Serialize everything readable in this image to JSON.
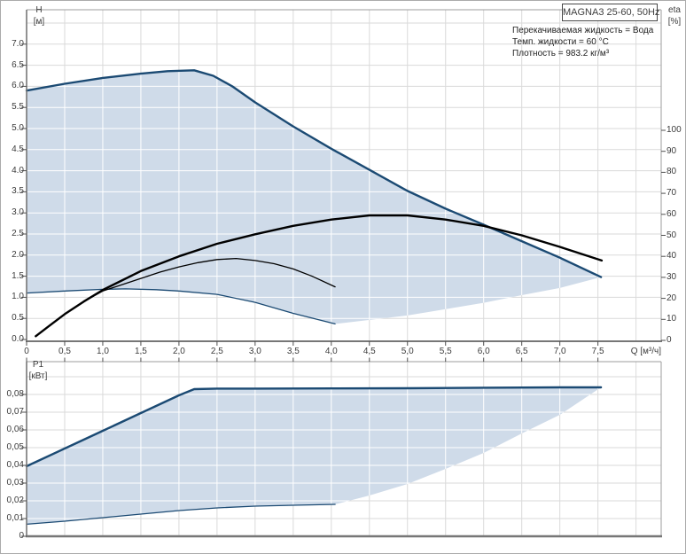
{
  "header": {
    "title": "MAGNA3 25-60, 50Hz"
  },
  "conditions": {
    "line1": "Перекачиваемая жидкость = Вода",
    "line2": "Темп. жидкости = 60 °C",
    "line3": "Плотность = 983.2 кг/м³"
  },
  "axes": {
    "h": [
      "H",
      "[м]"
    ],
    "eta": [
      "eta",
      "[%]"
    ],
    "p1": [
      "P1",
      "[кВт]"
    ],
    "q": "Q [м³/ч]"
  },
  "colors": {
    "curve_blue": "#1b4a73",
    "fill_blue": "#cfdbe9",
    "curve_black": "#000000",
    "grid": "#dadada",
    "frame_light": "#9c9c9c",
    "frame_dark": "#777777",
    "tick": "#4f4f4f",
    "text": "#3c3c3c"
  },
  "chart_data": [
    {
      "id": "head-efficiency",
      "type": "area",
      "x_axis": {
        "label": "Q [м³/ч]",
        "min": 0,
        "max": 8.33,
        "tick_labels": [
          "0",
          "0,5",
          "1,0",
          "1,5",
          "2,0",
          "2,5",
          "3,0",
          "3,5",
          "4,0",
          "4,5",
          "5,0",
          "5,5",
          "6,0",
          "6,5",
          "7,0",
          "7,5"
        ]
      },
      "y_axis_left": {
        "label": "H [м]",
        "min": 0,
        "max": 7.8,
        "tick_labels": [
          "7.0",
          "6.5",
          "6.0",
          "5.5",
          "5.0",
          "4.5",
          "4.0",
          "3.5",
          "3.0",
          "2.5",
          "2.0",
          "1.5",
          "1.0",
          "0.5",
          "0.0"
        ]
      },
      "y_axis_right": {
        "label": "eta [%]",
        "min": 0,
        "max": 100,
        "tick_labels": [
          "100",
          "90",
          "80",
          "70",
          "60",
          "50",
          "40",
          "30",
          "20",
          "10",
          "0"
        ]
      },
      "series": [
        {
          "name": "head-max-speed",
          "axis": "H",
          "style": "thick-blue",
          "points": [
            [
              0,
              5.9
            ],
            [
              0.5,
              6.06
            ],
            [
              1.0,
              6.2
            ],
            [
              1.5,
              6.3
            ],
            [
              1.85,
              6.36
            ],
            [
              2.2,
              6.38
            ],
            [
              2.45,
              6.25
            ],
            [
              2.7,
              6.0
            ],
            [
              3.0,
              5.62
            ],
            [
              3.5,
              5.05
            ],
            [
              4.0,
              4.52
            ],
            [
              4.5,
              4.02
            ],
            [
              5.0,
              3.52
            ],
            [
              5.5,
              3.1
            ],
            [
              6.0,
              2.72
            ],
            [
              6.5,
              2.33
            ],
            [
              7.0,
              1.94
            ],
            [
              7.54,
              1.48
            ]
          ]
        },
        {
          "name": "head-min-speed",
          "axis": "H",
          "style": "thin-blue",
          "points": [
            [
              0,
              1.1
            ],
            [
              0.5,
              1.15
            ],
            [
              1.0,
              1.19
            ],
            [
              1.3,
              1.2
            ],
            [
              1.7,
              1.18
            ],
            [
              2.0,
              1.15
            ],
            [
              2.5,
              1.07
            ],
            [
              3.0,
              0.88
            ],
            [
              3.5,
              0.62
            ],
            [
              4.05,
              0.37
            ]
          ]
        },
        {
          "name": "eta-max-speed",
          "axis": "eta",
          "style": "thick-black",
          "points": [
            [
              0.12,
              2
            ],
            [
              0.3,
              7
            ],
            [
              0.5,
              12.5
            ],
            [
              0.75,
              18.5
            ],
            [
              1.0,
              24
            ],
            [
              1.5,
              33
            ],
            [
              2.0,
              40
            ],
            [
              2.5,
              46
            ],
            [
              3.0,
              50.5
            ],
            [
              3.5,
              54.5
            ],
            [
              4.0,
              57.5
            ],
            [
              4.5,
              59.5
            ],
            [
              5.0,
              59.5
            ],
            [
              5.5,
              57.5
            ],
            [
              6.0,
              54.5
            ],
            [
              6.5,
              50
            ],
            [
              7.0,
              44.5
            ],
            [
              7.55,
              38
            ]
          ]
        },
        {
          "name": "eta-min-speed",
          "axis": "eta",
          "style": "thin-black",
          "points": [
            [
              0.12,
              2
            ],
            [
              0.3,
              7
            ],
            [
              0.5,
              12.5
            ],
            [
              0.75,
              18.5
            ],
            [
              1.0,
              23.5
            ],
            [
              1.25,
              26.5
            ],
            [
              1.5,
              29.5
            ],
            [
              1.75,
              32.5
            ],
            [
              2.0,
              35
            ],
            [
              2.25,
              37
            ],
            [
              2.5,
              38.5
            ],
            [
              2.75,
              39
            ],
            [
              3.0,
              38
            ],
            [
              3.25,
              36.5
            ],
            [
              3.5,
              34
            ],
            [
              3.75,
              30.5
            ],
            [
              4.05,
              25.5
            ]
          ]
        }
      ],
      "envelope_lower": [
        [
          0,
          1.1
        ],
        [
          0.5,
          1.15
        ],
        [
          1.0,
          1.19
        ],
        [
          1.3,
          1.2
        ],
        [
          1.7,
          1.18
        ],
        [
          2.0,
          1.15
        ],
        [
          2.5,
          1.07
        ],
        [
          3.0,
          0.88
        ],
        [
          3.5,
          0.62
        ],
        [
          4.05,
          0.37
        ],
        [
          5.0,
          0.57
        ],
        [
          6.0,
          0.87
        ],
        [
          6.5,
          1.05
        ],
        [
          7.0,
          1.22
        ],
        [
          7.54,
          1.48
        ]
      ]
    },
    {
      "id": "power",
      "type": "area",
      "y_axis_left": {
        "label": "P1 [кВт]",
        "min": 0,
        "max": 0.0985,
        "tick_labels": [
          "0,08",
          "0,07",
          "0,06",
          "0,05",
          "0,04",
          "0,03",
          "0,02",
          "0,01",
          "0"
        ]
      },
      "series": [
        {
          "name": "power-max-speed",
          "axis": "P",
          "style": "thick-blue",
          "points": [
            [
              0,
              0.0395
            ],
            [
              0.5,
              0.0495
            ],
            [
              1.0,
              0.0595
            ],
            [
              1.5,
              0.0695
            ],
            [
              2.0,
              0.0795
            ],
            [
              2.2,
              0.083
            ],
            [
              2.5,
              0.0833
            ],
            [
              3.0,
              0.0833
            ],
            [
              4.0,
              0.0834
            ],
            [
              5.0,
              0.0835
            ],
            [
              6.0,
              0.0838
            ],
            [
              7.0,
              0.084
            ],
            [
              7.54,
              0.084
            ]
          ]
        },
        {
          "name": "power-min-speed",
          "axis": "P",
          "style": "thin-blue",
          "points": [
            [
              0,
              0.0068
            ],
            [
              0.5,
              0.0085
            ],
            [
              1.0,
              0.0105
            ],
            [
              1.5,
              0.0125
            ],
            [
              2.0,
              0.0145
            ],
            [
              2.5,
              0.016
            ],
            [
              3.0,
              0.017
            ],
            [
              3.5,
              0.0175
            ],
            [
              4.05,
              0.018
            ]
          ]
        }
      ],
      "envelope_lower": [
        [
          0,
          0.0068
        ],
        [
          0.5,
          0.0085
        ],
        [
          1.0,
          0.0105
        ],
        [
          1.5,
          0.0125
        ],
        [
          2.0,
          0.0145
        ],
        [
          2.5,
          0.016
        ],
        [
          3.0,
          0.017
        ],
        [
          3.5,
          0.0175
        ],
        [
          4.05,
          0.018
        ],
        [
          4.5,
          0.023
        ],
        [
          5.0,
          0.0295
        ],
        [
          5.5,
          0.038
        ],
        [
          6.0,
          0.047
        ],
        [
          6.5,
          0.058
        ],
        [
          7.0,
          0.0685
        ],
        [
          7.54,
          0.084
        ]
      ]
    }
  ]
}
